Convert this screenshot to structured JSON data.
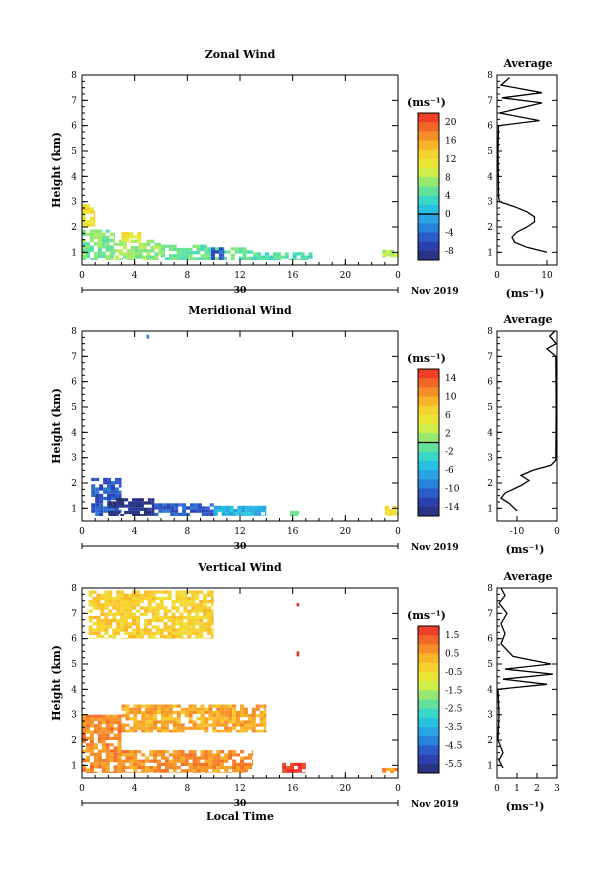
{
  "figure": {
    "colors": {
      "axis": "#000000",
      "background": "#ffffff"
    }
  },
  "chart_data": [
    {
      "type": "heatmap",
      "name": "zonal",
      "title": "Zonal Wind",
      "xlabel": "",
      "ylabel": "Height (km)",
      "xlim": [
        0,
        24
      ],
      "ylim": [
        0.5,
        8
      ],
      "x_ticks": [
        "0",
        "4",
        "8",
        "12",
        "16",
        "20",
        "0"
      ],
      "y_ticks": [
        "1",
        "2",
        "3",
        "4",
        "5",
        "6",
        "7",
        "8"
      ],
      "date_day": "30",
      "date_label": "Nov 2019",
      "colorbar": {
        "unit": "(ms⁻¹)",
        "min": -10,
        "max": 22,
        "ticks": [
          "20",
          "16",
          "12",
          "8",
          "4",
          "0",
          "-4",
          "-8"
        ],
        "tick_values": [
          20,
          16,
          12,
          8,
          4,
          0,
          -4,
          -8
        ],
        "marker_value": 0
      },
      "field": [
        {
          "t0": 0.0,
          "t1": 2.5,
          "h0": 0.7,
          "h1": 1.9,
          "v": 6
        },
        {
          "t0": 2.5,
          "t1": 6.0,
          "h0": 0.7,
          "h1": 1.5,
          "v": 7
        },
        {
          "t0": 6.0,
          "t1": 9.5,
          "h0": 0.7,
          "h1": 1.3,
          "v": 5
        },
        {
          "t0": 9.5,
          "t1": 13.0,
          "h0": 0.7,
          "h1": 1.2,
          "v": 5
        },
        {
          "t0": 13.0,
          "t1": 17.5,
          "h0": 0.7,
          "h1": 1.0,
          "v": 4
        },
        {
          "t0": 0.0,
          "t1": 1.0,
          "h0": 2.0,
          "h1": 2.9,
          "v": 12
        },
        {
          "t0": 3.0,
          "t1": 4.5,
          "h0": 1.4,
          "h1": 1.8,
          "v": 11
        },
        {
          "t0": 9.8,
          "t1": 10.8,
          "h0": 0.7,
          "h1": 1.2,
          "v": -5
        },
        {
          "t0": 22.8,
          "t1": 24.0,
          "h0": 0.8,
          "h1": 1.1,
          "v": 8
        }
      ],
      "average_profile": {
        "title": "Average",
        "xlabel": "(ms⁻¹)",
        "x_ticks": [
          "0",
          "10"
        ],
        "xlim": [
          0,
          12
        ],
        "ylim": [
          0.5,
          8
        ],
        "y_ticks": [
          "1",
          "2",
          "3",
          "4",
          "5",
          "6",
          "7",
          "8"
        ],
        "points": [
          [
            10,
            1.0
          ],
          [
            6,
            1.2
          ],
          [
            3.5,
            1.4
          ],
          [
            3,
            1.6
          ],
          [
            4,
            1.8
          ],
          [
            6,
            2.0
          ],
          [
            7.5,
            2.2
          ],
          [
            7.5,
            2.4
          ],
          [
            6,
            2.6
          ],
          [
            3.5,
            2.8
          ],
          [
            0.5,
            3.0
          ],
          [
            0.3,
            3.2
          ],
          [
            0.2,
            5.0
          ],
          [
            0.3,
            6.0
          ],
          [
            8.5,
            6.2
          ],
          [
            0.5,
            6.5
          ],
          [
            9,
            6.9
          ],
          [
            1,
            7.1
          ],
          [
            9,
            7.3
          ],
          [
            0.8,
            7.6
          ],
          [
            2.5,
            7.9
          ]
        ]
      }
    },
    {
      "type": "heatmap",
      "name": "meridional",
      "title": "Meridional Wind",
      "xlabel": "",
      "ylabel": "Height (km)",
      "xlim": [
        0,
        24
      ],
      "ylim": [
        0.5,
        8
      ],
      "x_ticks": [
        "0",
        "4",
        "8",
        "12",
        "16",
        "20",
        "0"
      ],
      "y_ticks": [
        "1",
        "2",
        "3",
        "4",
        "5",
        "6",
        "7",
        "8"
      ],
      "date_day": "30",
      "date_label": "Nov 2019",
      "colorbar": {
        "unit": "(ms⁻¹)",
        "min": -16,
        "max": 16,
        "ticks": [
          "14",
          "10",
          "6",
          "2",
          "-2",
          "-6",
          "-10",
          "-14"
        ],
        "tick_values": [
          14,
          10,
          6,
          2,
          -2,
          -6,
          -10,
          -14
        ],
        "marker_value": 0
      },
      "field": [
        {
          "t0": 0.7,
          "t1": 3.0,
          "h0": 0.7,
          "h1": 2.2,
          "v": -11
        },
        {
          "t0": 2.0,
          "t1": 5.5,
          "h0": 0.7,
          "h1": 1.4,
          "v": -15
        },
        {
          "t0": 5.5,
          "t1": 10.0,
          "h0": 0.7,
          "h1": 1.2,
          "v": -11
        },
        {
          "t0": 10.0,
          "t1": 14.0,
          "h0": 0.7,
          "h1": 1.1,
          "v": -6
        },
        {
          "t0": 15.8,
          "t1": 16.5,
          "h0": 0.7,
          "h1": 0.9,
          "v": 0
        },
        {
          "t0": 23.0,
          "t1": 24.0,
          "h0": 0.7,
          "h1": 1.1,
          "v": 6
        },
        {
          "t0": 4.9,
          "t1": 5.1,
          "h0": 7.7,
          "h1": 7.85,
          "v": -10
        }
      ],
      "average_profile": {
        "title": "Average",
        "xlabel": "(ms⁻¹)",
        "x_ticks": [
          "-10",
          "0"
        ],
        "xlim": [
          -15,
          0
        ],
        "ylim": [
          0.5,
          8
        ],
        "y_ticks": [
          "1",
          "2",
          "3",
          "4",
          "5",
          "6",
          "7",
          "8"
        ],
        "points": [
          [
            -10,
            0.9
          ],
          [
            -12,
            1.2
          ],
          [
            -14,
            1.4
          ],
          [
            -13,
            1.6
          ],
          [
            -9,
            1.9
          ],
          [
            -7,
            2.1
          ],
          [
            -9,
            2.3
          ],
          [
            -6,
            2.5
          ],
          [
            -1.5,
            2.7
          ],
          [
            -0.3,
            2.9
          ],
          [
            -0.2,
            5.0
          ],
          [
            -0.3,
            7.0
          ],
          [
            -2.5,
            7.3
          ],
          [
            -0.2,
            7.5
          ],
          [
            -1.8,
            7.8
          ],
          [
            -0.5,
            8.0
          ]
        ]
      }
    },
    {
      "type": "heatmap",
      "name": "vertical",
      "title": "Vertical Wind",
      "xlabel": "Local Time",
      "ylabel": "Height (km)",
      "xlim": [
        0,
        24
      ],
      "ylim": [
        0.5,
        8
      ],
      "x_ticks": [
        "0",
        "4",
        "8",
        "12",
        "16",
        "20",
        "0"
      ],
      "y_ticks": [
        "1",
        "2",
        "3",
        "4",
        "5",
        "6",
        "7",
        "8"
      ],
      "date_day": "30",
      "date_label": "Nov 2019",
      "colorbar": {
        "unit": "(ms⁻¹)",
        "min": -6.0,
        "max": 2.0,
        "ticks": [
          "1.5",
          "0.5",
          "-0.5",
          "-1.5",
          "-2.5",
          "-3.5",
          "-4.5",
          "-5.5"
        ],
        "tick_values": [
          1.5,
          0.5,
          -0.5,
          -1.5,
          -2.5,
          -3.5,
          -4.5,
          -5.5
        ],
        "marker_value": null
      },
      "field": [
        {
          "t0": 0.0,
          "t1": 3.0,
          "h0": 0.7,
          "h1": 3.0,
          "v": 0.8
        },
        {
          "t0": 3.0,
          "t1": 13.0,
          "h0": 0.7,
          "h1": 1.6,
          "v": 0.7
        },
        {
          "t0": 3.0,
          "t1": 14.0,
          "h0": 2.3,
          "h1": 3.4,
          "v": 0.4
        },
        {
          "t0": 0.5,
          "t1": 10.0,
          "h0": 6.0,
          "h1": 7.9,
          "v": -0.2
        },
        {
          "t0": 15.2,
          "t1": 17.0,
          "h0": 0.7,
          "h1": 1.1,
          "v": 1.8
        },
        {
          "t0": 22.8,
          "t1": 24.0,
          "h0": 0.7,
          "h1": 0.9,
          "v": 0.6
        },
        {
          "t0": 16.3,
          "t1": 16.5,
          "h0": 7.2,
          "h1": 7.4,
          "v": 1.8
        },
        {
          "t0": 16.3,
          "t1": 16.5,
          "h0": 5.3,
          "h1": 5.5,
          "v": 1.8
        }
      ],
      "average_profile": {
        "title": "Average",
        "xlabel": "(ms⁻¹)",
        "x_ticks": [
          "0",
          "1",
          "2",
          "3"
        ],
        "xlim": [
          0,
          3
        ],
        "ylim": [
          0.5,
          8
        ],
        "y_ticks": [
          "1",
          "2",
          "3",
          "4",
          "5",
          "6",
          "7",
          "8"
        ],
        "points": [
          [
            0.3,
            0.9
          ],
          [
            0.1,
            1.2
          ],
          [
            0.3,
            1.5
          ],
          [
            0.05,
            2.0
          ],
          [
            0.1,
            3.0
          ],
          [
            0.05,
            4.0
          ],
          [
            2.5,
            4.2
          ],
          [
            0.3,
            4.4
          ],
          [
            2.8,
            4.6
          ],
          [
            0.4,
            4.8
          ],
          [
            2.7,
            5.0
          ],
          [
            0.8,
            5.3
          ],
          [
            0.2,
            5.8
          ],
          [
            0.4,
            6.2
          ],
          [
            0.2,
            6.6
          ],
          [
            0.5,
            7.0
          ],
          [
            0.1,
            7.4
          ],
          [
            0.4,
            7.7
          ],
          [
            0.2,
            8.0
          ]
        ]
      }
    }
  ]
}
